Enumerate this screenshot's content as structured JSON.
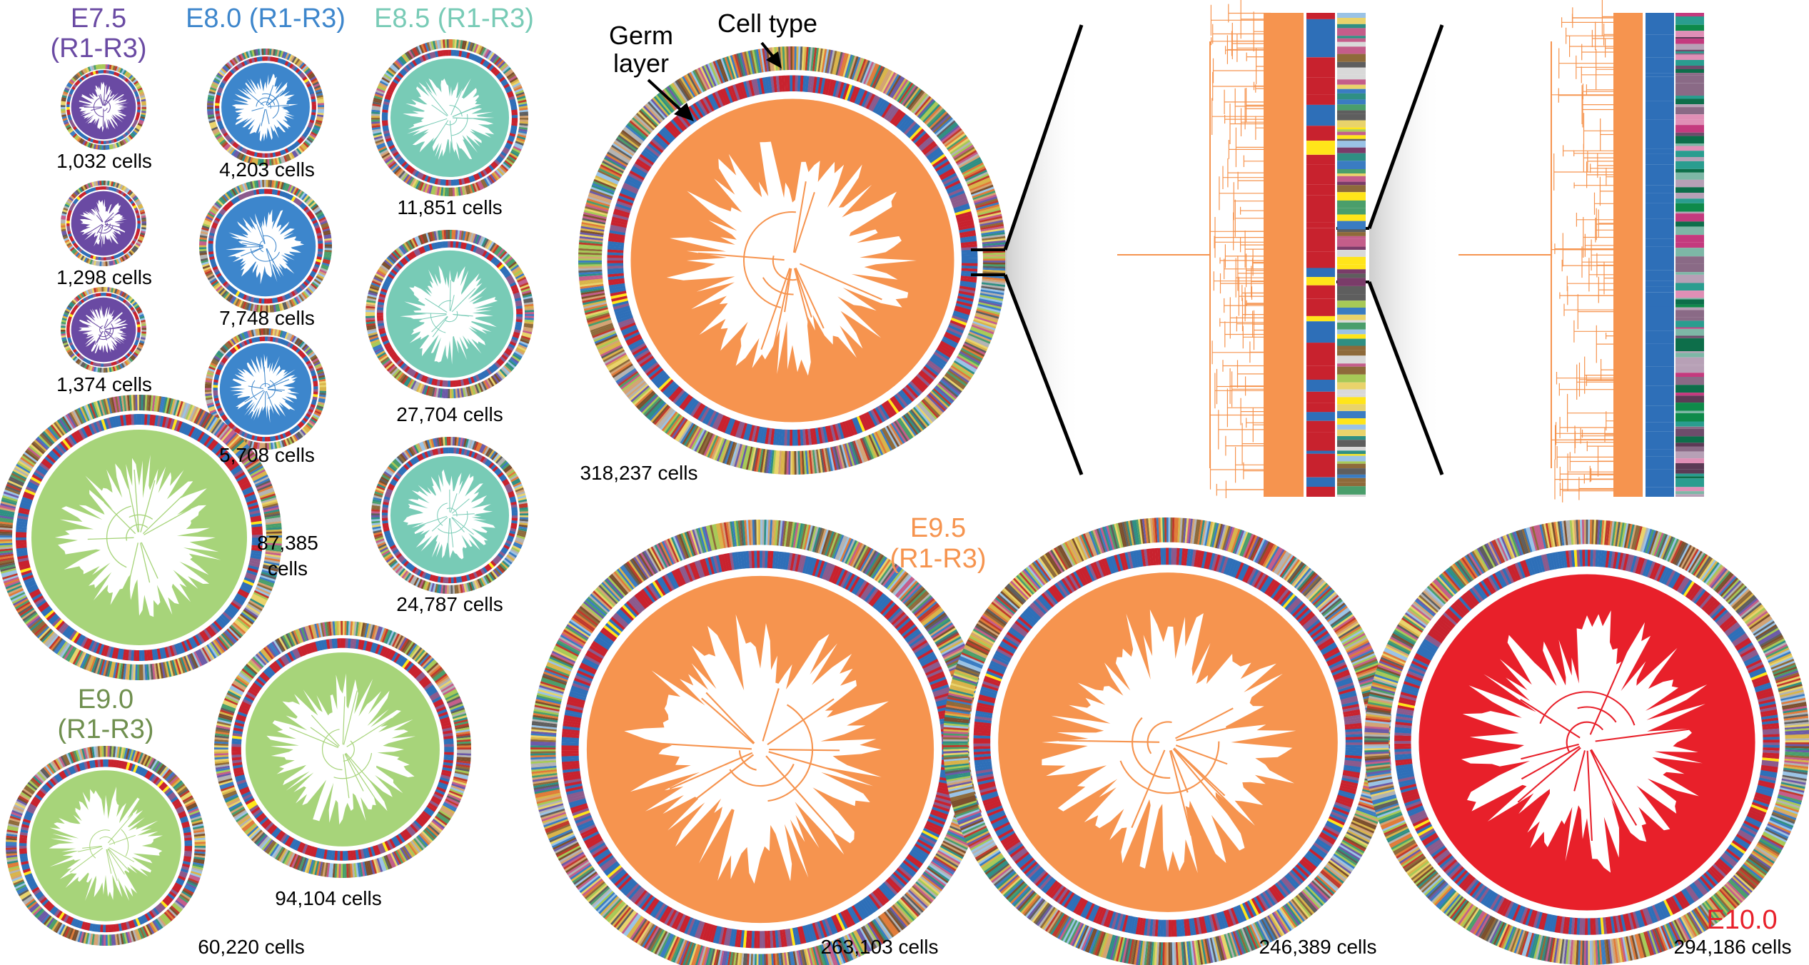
{
  "colors": {
    "E7.5": "#6a4aa3",
    "E8.0": "#3d86cc",
    "E8.5": "#78cbb6",
    "E9.0": "#a7d47a",
    "E9.0_text": "#6f8f4e",
    "E9.5": "#f6944f",
    "E10.0": "#e8202a",
    "germ_red": "#c8222e",
    "germ_blue": "#2e6fb8",
    "germ_yellow": "#ffe51a"
  },
  "stage_labels": {
    "e75": {
      "line1": "E7.5",
      "line2": "(R1-R3)"
    },
    "e80": "E8.0 (R1-R3)",
    "e85": "E8.5 (R1-R3)",
    "e90": {
      "line1": "E9.0",
      "line2": "(R1-R3)"
    },
    "e95": {
      "line1": "E9.5",
      "line2": "(R1-R3)"
    },
    "e100": "E10.0"
  },
  "annotations": {
    "germ_layer": {
      "line1": "Germ",
      "line2": "layer"
    },
    "cell_type": "Cell type"
  },
  "trees": [
    {
      "id": "e75_r1",
      "stage": "E7.5",
      "cells_label": "1,032 cells"
    },
    {
      "id": "e75_r2",
      "stage": "E7.5",
      "cells_label": "1,298 cells"
    },
    {
      "id": "e75_r3",
      "stage": "E7.5",
      "cells_label": "1,374 cells"
    },
    {
      "id": "e80_r1",
      "stage": "E8.0",
      "cells_label": "4,203 cells"
    },
    {
      "id": "e80_r2",
      "stage": "E8.0",
      "cells_label": "7,748 cells"
    },
    {
      "id": "e80_r3",
      "stage": "E8.0",
      "cells_label": "5,708 cells"
    },
    {
      "id": "e85_r1",
      "stage": "E8.5",
      "cells_label": "11,851 cells"
    },
    {
      "id": "e85_r2",
      "stage": "E8.5",
      "cells_label": "27,704 cells"
    },
    {
      "id": "e85_r3",
      "stage": "E8.5",
      "cells_label": "24,787 cells"
    },
    {
      "id": "e90_r1",
      "stage": "E9.0",
      "cells_label_line1": "87,385",
      "cells_label_line2": "cells"
    },
    {
      "id": "e90_r2",
      "stage": "E9.0",
      "cells_label": "94,104 cells"
    },
    {
      "id": "e90_r3",
      "stage": "E9.0",
      "cells_label": "60,220 cells"
    },
    {
      "id": "e95_r1",
      "stage": "E9.5",
      "cells_label": "318,237 cells"
    },
    {
      "id": "e95_r2",
      "stage": "E9.5",
      "cells_label": "263,103 cells"
    },
    {
      "id": "e95_r3",
      "stage": "E9.5",
      "cells_label": "246,389 cells"
    },
    {
      "id": "e100",
      "stage": "E10.0",
      "cells_label": "294,186 cells"
    }
  ]
}
